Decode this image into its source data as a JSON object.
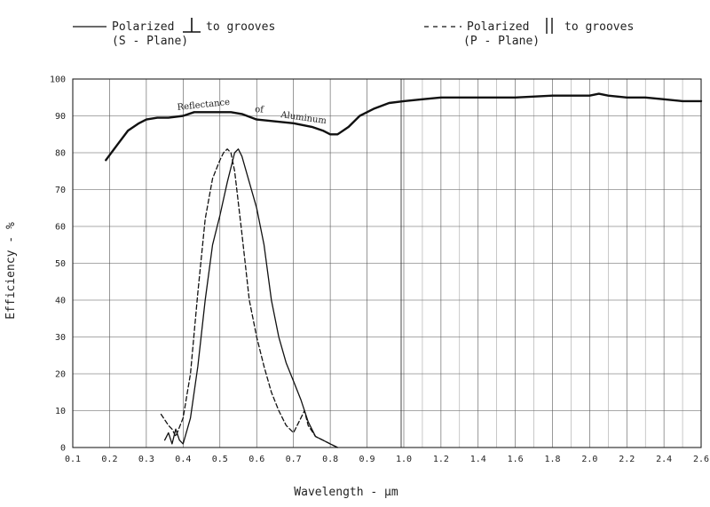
{
  "chart_data": {
    "type": "line",
    "xlabel": "Wavelength - μm",
    "ylabel": "Efficiency - %",
    "ylim": [
      0,
      100
    ],
    "grid": true,
    "legend_position": "top",
    "x_tick_labels_left": [
      "0.1",
      "0.2",
      "0.3",
      "0.4",
      "0.5",
      "0.6",
      "0.7",
      "0.8",
      "0.9",
      "1.0"
    ],
    "x_tick_values_left": [
      0.1,
      0.2,
      0.3,
      0.4,
      0.5,
      0.6,
      0.7,
      0.8,
      0.9,
      1.0
    ],
    "x_tick_labels_right": [
      "1.2",
      "1.4",
      "1.6",
      "1.8",
      "2.0",
      "2.2",
      "2.4",
      "2.6"
    ],
    "x_tick_values_right": [
      1.2,
      1.4,
      1.6,
      1.8,
      2.0,
      2.2,
      2.4,
      2.6
    ],
    "y_tick_labels": [
      "0",
      "10",
      "20",
      "30",
      "40",
      "50",
      "60",
      "70",
      "80",
      "90",
      "100"
    ],
    "y_tick_values": [
      0,
      10,
      20,
      30,
      40,
      50,
      60,
      70,
      80,
      90,
      100
    ],
    "legend": {
      "s_line1": "Polarized",
      "s_line1b": "to grooves",
      "s_line2": "(S - Plane)",
      "p_line1": "Polarized",
      "p_line1b": "to grooves",
      "p_line2": "(P - Plane)"
    },
    "annotations": [
      "Reflectance",
      "of",
      "Aluminum"
    ],
    "series": [
      {
        "key": "reflectance",
        "style": "solid-thick",
        "x": [
          0.19,
          0.22,
          0.25,
          0.28,
          0.3,
          0.33,
          0.36,
          0.4,
          0.43,
          0.46,
          0.5,
          0.53,
          0.56,
          0.6,
          0.65,
          0.7,
          0.75,
          0.78,
          0.8,
          0.82,
          0.85,
          0.88,
          0.92,
          0.96,
          1.0,
          1.1,
          1.2,
          1.4,
          1.6,
          1.8,
          1.9,
          2.0,
          2.05,
          2.1,
          2.2,
          2.3,
          2.4,
          2.5,
          2.6
        ],
        "y": [
          78,
          82,
          86,
          88,
          89,
          89.5,
          89.5,
          90,
          91,
          91,
          91,
          91,
          90.5,
          89,
          88.5,
          88,
          87,
          86,
          85,
          85,
          87,
          90,
          92,
          93.5,
          94,
          94.5,
          95,
          95,
          95,
          95.5,
          95.5,
          95.5,
          96,
          95.5,
          95,
          95,
          94.5,
          94,
          94
        ]
      },
      {
        "key": "s_plane",
        "name": "(S - Plane)",
        "style": "solid",
        "x": [
          0.35,
          0.36,
          0.37,
          0.38,
          0.39,
          0.4,
          0.42,
          0.44,
          0.46,
          0.48,
          0.5,
          0.52,
          0.54,
          0.55,
          0.56,
          0.58,
          0.6,
          0.62,
          0.64,
          0.66,
          0.68,
          0.7,
          0.72,
          0.74,
          0.76,
          0.78,
          0.8,
          0.82
        ],
        "y": [
          2,
          4,
          1,
          5,
          2,
          1,
          8,
          22,
          40,
          55,
          63,
          72,
          80,
          81,
          79,
          72,
          65,
          55,
          40,
          30,
          23,
          18,
          13,
          7,
          3,
          2,
          1,
          0
        ]
      },
      {
        "key": "p_plane",
        "name": "(P - Plane)",
        "style": "dashed",
        "x": [
          0.34,
          0.36,
          0.37,
          0.38,
          0.4,
          0.42,
          0.44,
          0.46,
          0.48,
          0.5,
          0.51,
          0.52,
          0.53,
          0.54,
          0.56,
          0.58,
          0.6,
          0.62,
          0.64,
          0.66,
          0.68,
          0.7,
          0.72,
          0.73,
          0.74,
          0.76,
          0.78,
          0.8,
          0.82
        ],
        "y": [
          9,
          6,
          5,
          3,
          8,
          20,
          42,
          62,
          73,
          78,
          80,
          81,
          80,
          75,
          58,
          40,
          30,
          22,
          15,
          10,
          6,
          4,
          8,
          10,
          6,
          3,
          2,
          1,
          0
        ]
      }
    ]
  }
}
